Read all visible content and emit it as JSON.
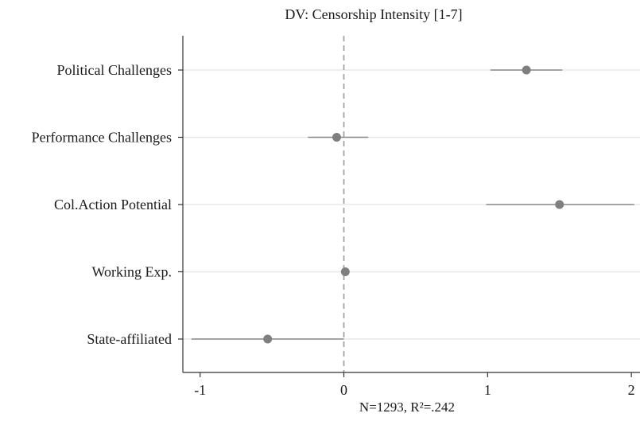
{
  "chart_data": {
    "type": "scatter",
    "title": "DV: Censorship Intensity [1-7]",
    "xlabel": "N=1293, R²=.242",
    "ylabel": "",
    "xlim": [
      -1.12,
      2.06
    ],
    "xticks": [
      -1,
      0,
      1,
      2
    ],
    "xtick_labels": [
      "-1",
      "0",
      "1",
      "2"
    ],
    "reference_line": 0,
    "categories": [
      "Political Challenges",
      "Performance Challenges",
      "Col.Action Potential",
      "Working Exp.",
      "State-affiliated"
    ],
    "series": [
      {
        "estimates": [
          1.27,
          -0.05,
          1.5,
          0.01,
          -0.53
        ],
        "ci_low": [
          1.02,
          -0.25,
          0.99,
          0.01,
          -1.06
        ],
        "ci_high": [
          1.52,
          0.17,
          2.02,
          0.01,
          0.0
        ]
      }
    ],
    "grid": "horizontal",
    "colors": {
      "point": "#7f7f7f",
      "ci": "#8a8a8a",
      "grid": "#e8e8e8",
      "axis": "#333333",
      "reference": "#9a9a9a"
    }
  }
}
